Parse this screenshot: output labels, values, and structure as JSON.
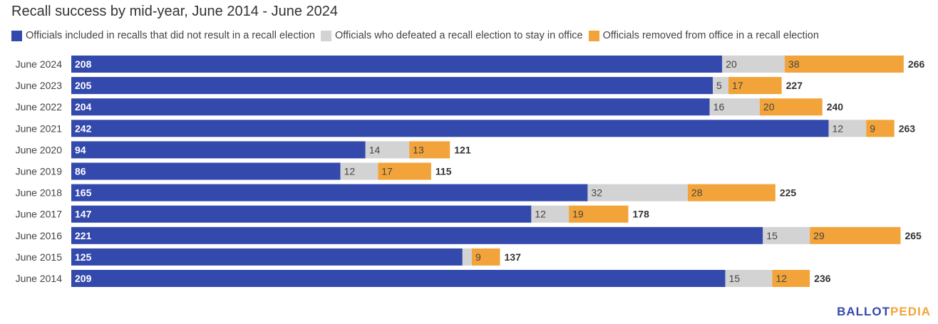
{
  "chart_data": {
    "type": "bar",
    "orientation": "horizontal",
    "stacked": true,
    "title": "Recall success by mid-year, June 2014 - June 2024",
    "categories": [
      "June 2024",
      "June 2023",
      "June 2022",
      "June 2021",
      "June 2020",
      "June 2019",
      "June 2018",
      "June 2017",
      "June 2016",
      "June 2015",
      "June 2014"
    ],
    "series": [
      {
        "name": "Officials included in recalls that did not result in a recall election",
        "color": "#3449ac",
        "values": [
          208,
          205,
          204,
          242,
          94,
          86,
          165,
          147,
          221,
          125,
          209
        ]
      },
      {
        "name": "Officials who defeated a recall election to stay in office",
        "color": "#d3d3d3",
        "values": [
          20,
          5,
          16,
          12,
          14,
          12,
          32,
          12,
          15,
          3,
          15
        ]
      },
      {
        "name": "Officials removed from office in a recall election",
        "color": "#f2a43a",
        "values": [
          38,
          17,
          20,
          9,
          13,
          17,
          28,
          19,
          29,
          9,
          12
        ]
      }
    ],
    "shown_labels": [
      [
        "208",
        "20",
        "38"
      ],
      [
        "205",
        "5",
        "17"
      ],
      [
        "204",
        "16",
        "20"
      ],
      [
        "242",
        "12",
        "9"
      ],
      [
        "94",
        "14",
        "13"
      ],
      [
        "86",
        "12",
        "17"
      ],
      [
        "165",
        "32",
        "28"
      ],
      [
        "147",
        "12",
        "19"
      ],
      [
        "221",
        "15",
        "29"
      ],
      [
        "125",
        "",
        "9"
      ],
      [
        "209",
        "15",
        "12"
      ]
    ],
    "totals": [
      "266",
      "227",
      "240",
      "263",
      "121",
      "115",
      "225",
      "178",
      "265",
      "137",
      "236"
    ],
    "xlim": [
      0,
      274
    ]
  },
  "brand": {
    "part1": "BALLOT",
    "part2": "PEDIA",
    "color1": "#3449ac",
    "color2": "#f2a43a"
  }
}
